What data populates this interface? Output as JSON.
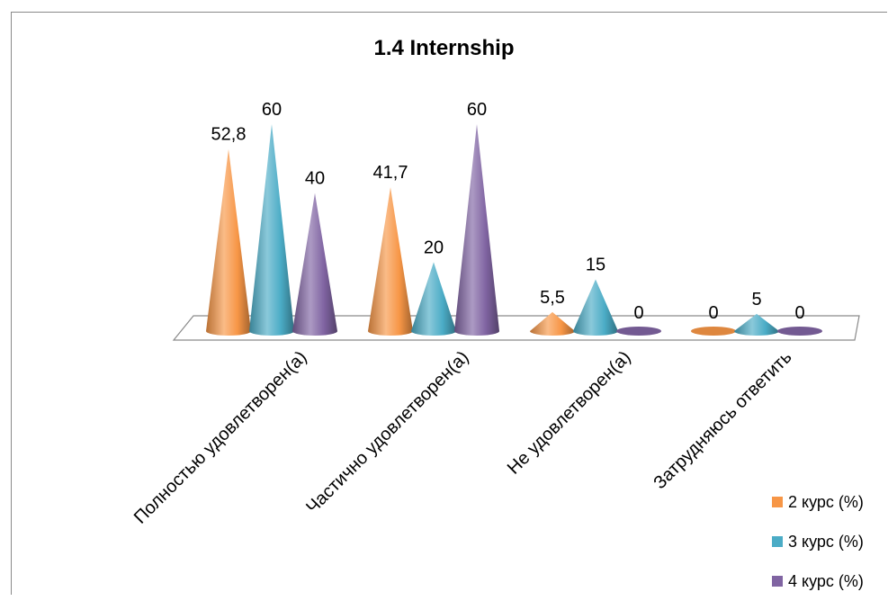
{
  "chart_data": {
    "type": "bar",
    "shape": "cone",
    "title": "1.4 Internship",
    "categories": [
      "Полностью удовлетворен(а)",
      "Частично удовлетворен(а)",
      "Не удовлетворен(а)",
      "Затрудняюсь ответить"
    ],
    "series": [
      {
        "name": "2 курс (%)",
        "color": "#f79646",
        "values": [
          52.8,
          41.7,
          5.5,
          0
        ],
        "labels": [
          "52,8",
          "41,7",
          "5,5",
          "0"
        ]
      },
      {
        "name": "3 курс (%)",
        "color": "#4bacc6",
        "values": [
          60,
          20,
          15,
          5
        ],
        "labels": [
          "60",
          "20",
          "15",
          "5"
        ]
      },
      {
        "name": "4 курс (%)",
        "color": "#8064a2",
        "values": [
          40,
          60,
          0,
          0
        ],
        "labels": [
          "40",
          "60",
          "0",
          "0"
        ]
      }
    ],
    "ylim": [
      0,
      60
    ],
    "grid": false,
    "legend": "bottom-right"
  }
}
